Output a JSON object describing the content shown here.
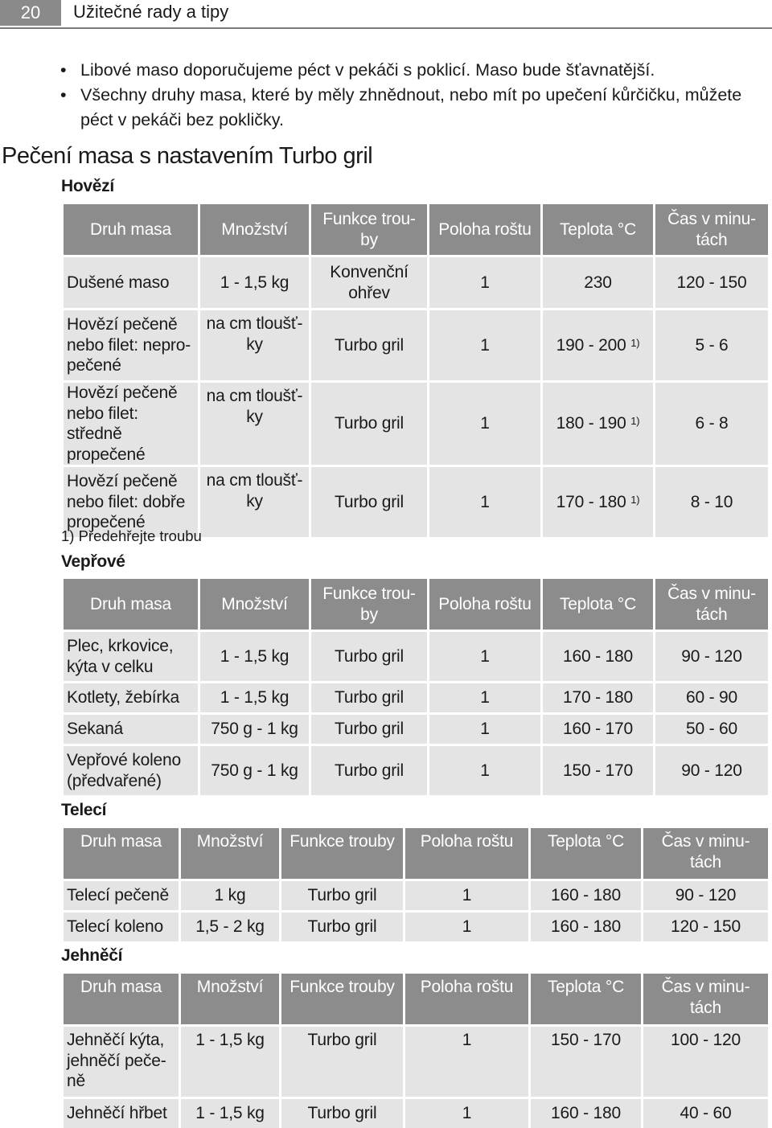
{
  "header": {
    "page_number": "20",
    "title": "Užitečné rady a tipy"
  },
  "bullets": [
    "Libové maso doporučujeme péct v pekáči s poklicí. Maso bude šťavnatější.",
    "Všechny druhy masa, které by měly zhnědnout, nebo mít po upečení kůrčičku, můžete péct v pekáči bez pokličky."
  ],
  "section_title": "Pečení masa s nastavením Turbo gril",
  "columns": {
    "druh": "Druh masa",
    "mnozstvi": "Množství",
    "funkce": "Funkce trouby",
    "funkce_split": "Funkce trou-by",
    "poloha": "Poloha roštu",
    "teplota": "Teplota °C",
    "cas": "Čas v minu-tách"
  },
  "beef": {
    "title": "Hovězí",
    "rows": [
      {
        "druh": "Dušené maso",
        "mnozstvi": "1 - 1,5 kg",
        "funkce": "Konvenční ohřev",
        "poloha": "1",
        "teplota": "230",
        "sup": "",
        "cas": "120 - 150"
      },
      {
        "druh": "Hovězí pečeně nebo filet: nepro-pečené",
        "mnozstvi": "na cm tloušť-ky",
        "funkce": "Turbo gril",
        "poloha": "1",
        "teplota": "190 - 200",
        "sup": "1)",
        "cas": "5 - 6"
      },
      {
        "druh": "Hovězí pečeně nebo filet: středně propečené",
        "mnozstvi": "na cm tloušť-ky",
        "funkce": "Turbo gril",
        "poloha": "1",
        "teplota": "180 - 190",
        "sup": "1)",
        "cas": "6 - 8"
      },
      {
        "druh": "Hovězí pečeně nebo filet: dobře propečené",
        "mnozstvi": "na cm tloušť-ky",
        "funkce": "Turbo gril",
        "poloha": "1",
        "teplota": "170 - 180",
        "sup": "1)",
        "cas": "8 - 10"
      }
    ],
    "footnote": "1) Předehřejte troubu"
  },
  "pork": {
    "title": "Vepřové",
    "rows": [
      {
        "druh": "Plec, krkovice, kýta v celku",
        "mnozstvi": "1 - 1,5 kg",
        "funkce": "Turbo gril",
        "poloha": "1",
        "teplota": "160 - 180",
        "cas": "90 - 120"
      },
      {
        "druh": "Kotlety, žebírka",
        "mnozstvi": "1 - 1,5 kg",
        "funkce": "Turbo gril",
        "poloha": "1",
        "teplota": "170 - 180",
        "cas": "60 - 90"
      },
      {
        "druh": "Sekaná",
        "mnozstvi": "750 g - 1 kg",
        "funkce": "Turbo gril",
        "poloha": "1",
        "teplota": "160 - 170",
        "cas": "50 - 60"
      },
      {
        "druh": "Vepřové koleno (předvařené)",
        "mnozstvi": "750 g - 1 kg",
        "funkce": "Turbo gril",
        "poloha": "1",
        "teplota": "150 - 170",
        "cas": "90 - 120"
      }
    ]
  },
  "veal": {
    "title": "Telecí",
    "rows": [
      {
        "druh": "Telecí pečeně",
        "mnozstvi": "1 kg",
        "funkce": "Turbo gril",
        "poloha": "1",
        "teplota": "160 - 180",
        "cas": "90 - 120"
      },
      {
        "druh": "Telecí koleno",
        "mnozstvi": "1,5 - 2 kg",
        "funkce": "Turbo gril",
        "poloha": "1",
        "teplota": "160 - 180",
        "cas": "120 - 150"
      }
    ]
  },
  "lamb": {
    "title": "Jehněčí",
    "rows": [
      {
        "druh": "Jehněčí kýta, jehněčí peče-ně",
        "mnozstvi": "1 - 1,5 kg",
        "funkce": "Turbo gril",
        "poloha": "1",
        "teplota": "150 - 170",
        "cas": "100 - 120"
      },
      {
        "druh": "Jehněčí hřbet",
        "mnozstvi": "1 - 1,5 kg",
        "funkce": "Turbo gril",
        "poloha": "1",
        "teplota": "160 - 180",
        "cas": "40 - 60"
      }
    ]
  }
}
